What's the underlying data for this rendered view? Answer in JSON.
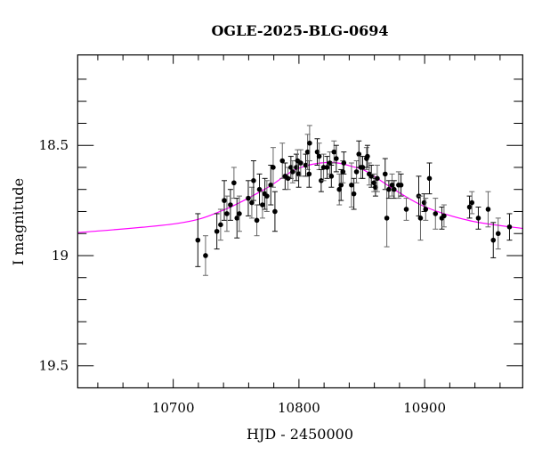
{
  "chart_data": {
    "type": "scatter",
    "title": "OGLE-2025-BLG-0694",
    "xlabel": "HJD - 2450000",
    "ylabel": "I magnitude",
    "xlim": [
      10624,
      10978
    ],
    "ylim": [
      19.6,
      18.09
    ],
    "y_inverted": true,
    "xticks": [
      10700,
      10800,
      10900
    ],
    "xtick_labels": [
      "10700",
      "10800",
      "10900"
    ],
    "yticks": [
      18.5,
      19,
      19.5
    ],
    "ytick_labels": [
      "18.5",
      "19",
      "19.5"
    ],
    "grid": false,
    "colors": {
      "points": "#000000",
      "errorbars": "#444444",
      "model": "#ff00ff"
    },
    "series": [
      {
        "kind": "data-with-errors",
        "points": [
          [
            10719.6,
            18.93,
            0.12
          ],
          [
            10725.7,
            19.0,
            0.09
          ],
          [
            10734.7,
            18.89,
            0.08
          ],
          [
            10737.7,
            18.86,
            0.07
          ],
          [
            10740.6,
            18.75,
            0.09
          ],
          [
            10742.7,
            18.81,
            0.08
          ],
          [
            10745.5,
            18.77,
            0.07
          ],
          [
            10748.3,
            18.67,
            0.07
          ],
          [
            10750.7,
            18.83,
            0.09
          ],
          [
            10752.6,
            18.81,
            0.08
          ],
          [
            10759.7,
            18.74,
            0.08
          ],
          [
            10762.5,
            18.76,
            0.07
          ],
          [
            10763.9,
            18.66,
            0.09
          ],
          [
            10766.5,
            18.84,
            0.07
          ],
          [
            10768.6,
            18.7,
            0.07
          ],
          [
            10771.0,
            18.77,
            0.06
          ],
          [
            10772.9,
            18.72,
            0.07
          ],
          [
            10774.5,
            18.73,
            0.07
          ],
          [
            10777.6,
            18.68,
            0.09
          ],
          [
            10779.5,
            18.6,
            0.09
          ],
          [
            10780.9,
            18.8,
            0.09
          ],
          [
            10786.8,
            18.57,
            0.08
          ],
          [
            10789.0,
            18.64,
            0.06
          ],
          [
            10791.3,
            18.65,
            0.05
          ],
          [
            10793.6,
            18.6,
            0.05
          ],
          [
            10795.0,
            18.62,
            0.05
          ],
          [
            10797.9,
            18.6,
            0.06
          ],
          [
            10798.9,
            18.57,
            0.05
          ],
          [
            10799.8,
            18.63,
            0.06
          ],
          [
            10801.4,
            18.58,
            0.06
          ],
          [
            10805.4,
            18.59,
            0.05
          ],
          [
            10806.9,
            18.53,
            0.08
          ],
          [
            10808.1,
            18.63,
            0.06
          ],
          [
            10808.5,
            18.49,
            0.08
          ],
          [
            10814.6,
            18.53,
            0.06
          ],
          [
            10816.1,
            18.55,
            0.06
          ],
          [
            10817.7,
            18.66,
            0.05
          ],
          [
            10819.6,
            18.6,
            0.06
          ],
          [
            10822.4,
            18.6,
            0.05
          ],
          [
            10824.6,
            18.58,
            0.05
          ],
          [
            10825.8,
            18.64,
            0.05
          ],
          [
            10827.9,
            18.53,
            0.05
          ],
          [
            10829.7,
            18.56,
            0.06
          ],
          [
            10832.1,
            18.7,
            0.07
          ],
          [
            10833.5,
            18.68,
            0.07
          ],
          [
            10835.0,
            18.62,
            0.05
          ],
          [
            10835.7,
            18.58,
            0.05
          ],
          [
            10841.8,
            18.68,
            0.1
          ],
          [
            10843.7,
            18.72,
            0.07
          ],
          [
            10845.8,
            18.62,
            0.05
          ],
          [
            10847.7,
            18.54,
            0.06
          ],
          [
            10849.3,
            18.6,
            0.05
          ],
          [
            10850.7,
            18.6,
            0.05
          ],
          [
            10853.8,
            18.56,
            0.05
          ],
          [
            10854.5,
            18.55,
            0.05
          ],
          [
            10855.9,
            18.63,
            0.05
          ],
          [
            10857.6,
            18.64,
            0.05
          ],
          [
            10859.7,
            18.67,
            0.04
          ],
          [
            10860.9,
            18.69,
            0.04
          ],
          [
            10862.3,
            18.65,
            0.06
          ],
          [
            10868.6,
            18.63,
            0.07
          ],
          [
            10869.9,
            18.83,
            0.13
          ],
          [
            10871.5,
            18.7,
            0.04
          ],
          [
            10874.1,
            18.68,
            0.05
          ],
          [
            10875.7,
            18.7,
            0.04
          ],
          [
            10879.3,
            18.68,
            0.06
          ],
          [
            10881.2,
            18.68,
            0.05
          ],
          [
            10885.4,
            18.79,
            0.05
          ],
          [
            10895.3,
            18.73,
            0.09
          ],
          [
            10896.7,
            18.83,
            0.1
          ],
          [
            10899.6,
            18.76,
            0.04
          ],
          [
            10900.8,
            18.79,
            0.05
          ],
          [
            10903.8,
            18.65,
            0.07
          ],
          [
            10908.6,
            18.81,
            0.07
          ],
          [
            10913.7,
            18.83,
            0.05
          ],
          [
            10915.4,
            18.82,
            0.05
          ],
          [
            10935.7,
            18.78,
            0.05
          ],
          [
            10937.6,
            18.76,
            0.05
          ],
          [
            10942.7,
            18.83,
            0.05
          ],
          [
            10950.5,
            18.79,
            0.08
          ],
          [
            10954.6,
            18.93,
            0.08
          ],
          [
            10958.5,
            18.9,
            0.07
          ],
          [
            10967.5,
            18.87,
            0.06
          ]
        ]
      },
      {
        "kind": "model-curve",
        "x": [
          10624,
          10703.5,
          10739,
          10774,
          10798,
          10824,
          10845,
          10854.5,
          10878,
          10901.7,
          10937,
          10978
        ],
        "y": [
          18.896,
          18.854,
          18.796,
          18.695,
          18.608,
          18.577,
          18.6,
          18.621,
          18.708,
          18.782,
          18.843,
          18.877
        ]
      }
    ]
  }
}
